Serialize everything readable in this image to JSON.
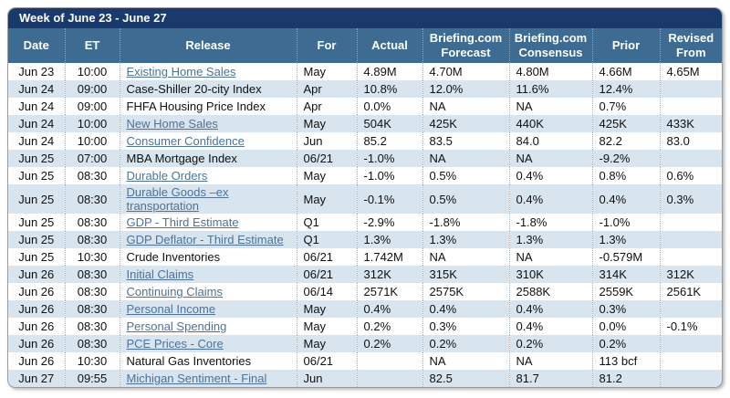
{
  "title": "Week of June 23 - June 27",
  "colors": {
    "title_bar": "#1A3A6C",
    "header_row": "#3D6B92",
    "alt_row": "#D8E4EE",
    "link": "#4E7396"
  },
  "columns": [
    {
      "key": "date",
      "label": "Date"
    },
    {
      "key": "et",
      "label": "ET"
    },
    {
      "key": "release",
      "label": "Release"
    },
    {
      "key": "for",
      "label": "For"
    },
    {
      "key": "actual",
      "label": "Actual"
    },
    {
      "key": "forecast",
      "label": "Briefing.com Forecast"
    },
    {
      "key": "consensus",
      "label": "Briefing.com Consensus"
    },
    {
      "key": "prior",
      "label": "Prior"
    },
    {
      "key": "revised_from",
      "label": "Revised From"
    }
  ],
  "rows": [
    {
      "date": "Jun 23",
      "et": "10:00",
      "release": "Existing Home Sales",
      "is_link": true,
      "for": "May",
      "actual": "4.89M",
      "forecast": "4.70M",
      "consensus": "4.80M",
      "prior": "4.66M",
      "revised_from": "4.65M"
    },
    {
      "date": "Jun 24",
      "et": "09:00",
      "release": "Case-Shiller 20-city Index",
      "is_link": false,
      "for": "Apr",
      "actual": "10.8%",
      "forecast": "12.0%",
      "consensus": "11.6%",
      "prior": "12.4%",
      "revised_from": ""
    },
    {
      "date": "Jun 24",
      "et": "09:00",
      "release": "FHFA Housing Price Index",
      "is_link": false,
      "for": "Apr",
      "actual": "0.0%",
      "forecast": "NA",
      "consensus": "NA",
      "prior": "0.7%",
      "revised_from": ""
    },
    {
      "date": "Jun 24",
      "et": "10:00",
      "release": "New Home Sales",
      "is_link": true,
      "for": "May",
      "actual": "504K",
      "forecast": "425K",
      "consensus": "440K",
      "prior": "425K",
      "revised_from": "433K"
    },
    {
      "date": "Jun 24",
      "et": "10:00",
      "release": "Consumer Confidence",
      "is_link": true,
      "for": "Jun",
      "actual": "85.2",
      "forecast": "83.5",
      "consensus": "84.0",
      "prior": "82.2",
      "revised_from": "83.0"
    },
    {
      "date": "Jun 25",
      "et": "07:00",
      "release": "MBA Mortgage Index",
      "is_link": false,
      "for": "06/21",
      "actual": "-1.0%",
      "forecast": "NA",
      "consensus": "NA",
      "prior": "-9.2%",
      "revised_from": ""
    },
    {
      "date": "Jun 25",
      "et": "08:30",
      "release": "Durable Orders",
      "is_link": true,
      "for": "May",
      "actual": "-1.0%",
      "forecast": "0.5%",
      "consensus": "0.4%",
      "prior": "0.8%",
      "revised_from": "0.6%"
    },
    {
      "date": "Jun 25",
      "et": "08:30",
      "release": "Durable Goods –ex transportation",
      "is_link": true,
      "for": "May",
      "actual": "-0.1%",
      "forecast": "0.5%",
      "consensus": "0.4%",
      "prior": "0.4%",
      "revised_from": "0.3%"
    },
    {
      "date": "Jun 25",
      "et": "08:30",
      "release": "GDP - Third Estimate",
      "is_link": true,
      "for": "Q1",
      "actual": "-2.9%",
      "forecast": "-1.8%",
      "consensus": "-1.8%",
      "prior": "-1.0%",
      "revised_from": ""
    },
    {
      "date": "Jun 25",
      "et": "08:30",
      "release": "GDP Deflator - Third Estimate",
      "is_link": true,
      "for": "Q1",
      "actual": "1.3%",
      "forecast": "1.3%",
      "consensus": "1.3%",
      "prior": "1.3%",
      "revised_from": ""
    },
    {
      "date": "Jun 25",
      "et": "10:30",
      "release": "Crude Inventories",
      "is_link": false,
      "for": "06/21",
      "actual": "1.742M",
      "forecast": "NA",
      "consensus": "NA",
      "prior": "-0.579M",
      "revised_from": ""
    },
    {
      "date": "Jun 26",
      "et": "08:30",
      "release": "Initial Claims",
      "is_link": true,
      "for": "06/21",
      "actual": "312K",
      "forecast": "315K",
      "consensus": "310K",
      "prior": "314K",
      "revised_from": "312K"
    },
    {
      "date": "Jun 26",
      "et": "08:30",
      "release": "Continuing Claims",
      "is_link": true,
      "for": "06/14",
      "actual": "2571K",
      "forecast": "2575K",
      "consensus": "2588K",
      "prior": "2559K",
      "revised_from": "2561K"
    },
    {
      "date": "Jun 26",
      "et": "08:30",
      "release": "Personal Income",
      "is_link": true,
      "for": "May",
      "actual": "0.4%",
      "forecast": "0.4%",
      "consensus": "0.4%",
      "prior": "0.3%",
      "revised_from": ""
    },
    {
      "date": "Jun 26",
      "et": "08:30",
      "release": "Personal Spending",
      "is_link": true,
      "for": "May",
      "actual": "0.2%",
      "forecast": "0.3%",
      "consensus": "0.4%",
      "prior": "0.0%",
      "revised_from": "-0.1%"
    },
    {
      "date": "Jun 26",
      "et": "08:30",
      "release": "PCE Prices - Core",
      "is_link": true,
      "for": "May",
      "actual": "0.2%",
      "forecast": "0.2%",
      "consensus": "0.2%",
      "prior": "0.2%",
      "revised_from": ""
    },
    {
      "date": "Jun 26",
      "et": "10:30",
      "release": "Natural Gas Inventories",
      "is_link": false,
      "for": "06/21",
      "actual": "",
      "forecast": "NA",
      "consensus": "NA",
      "prior": "113 bcf",
      "revised_from": ""
    },
    {
      "date": "Jun 27",
      "et": "09:55",
      "release": "Michigan Sentiment - Final",
      "is_link": true,
      "for": "Jun",
      "actual": "",
      "forecast": "82.5",
      "consensus": "81.7",
      "prior": "81.2",
      "revised_from": ""
    }
  ]
}
